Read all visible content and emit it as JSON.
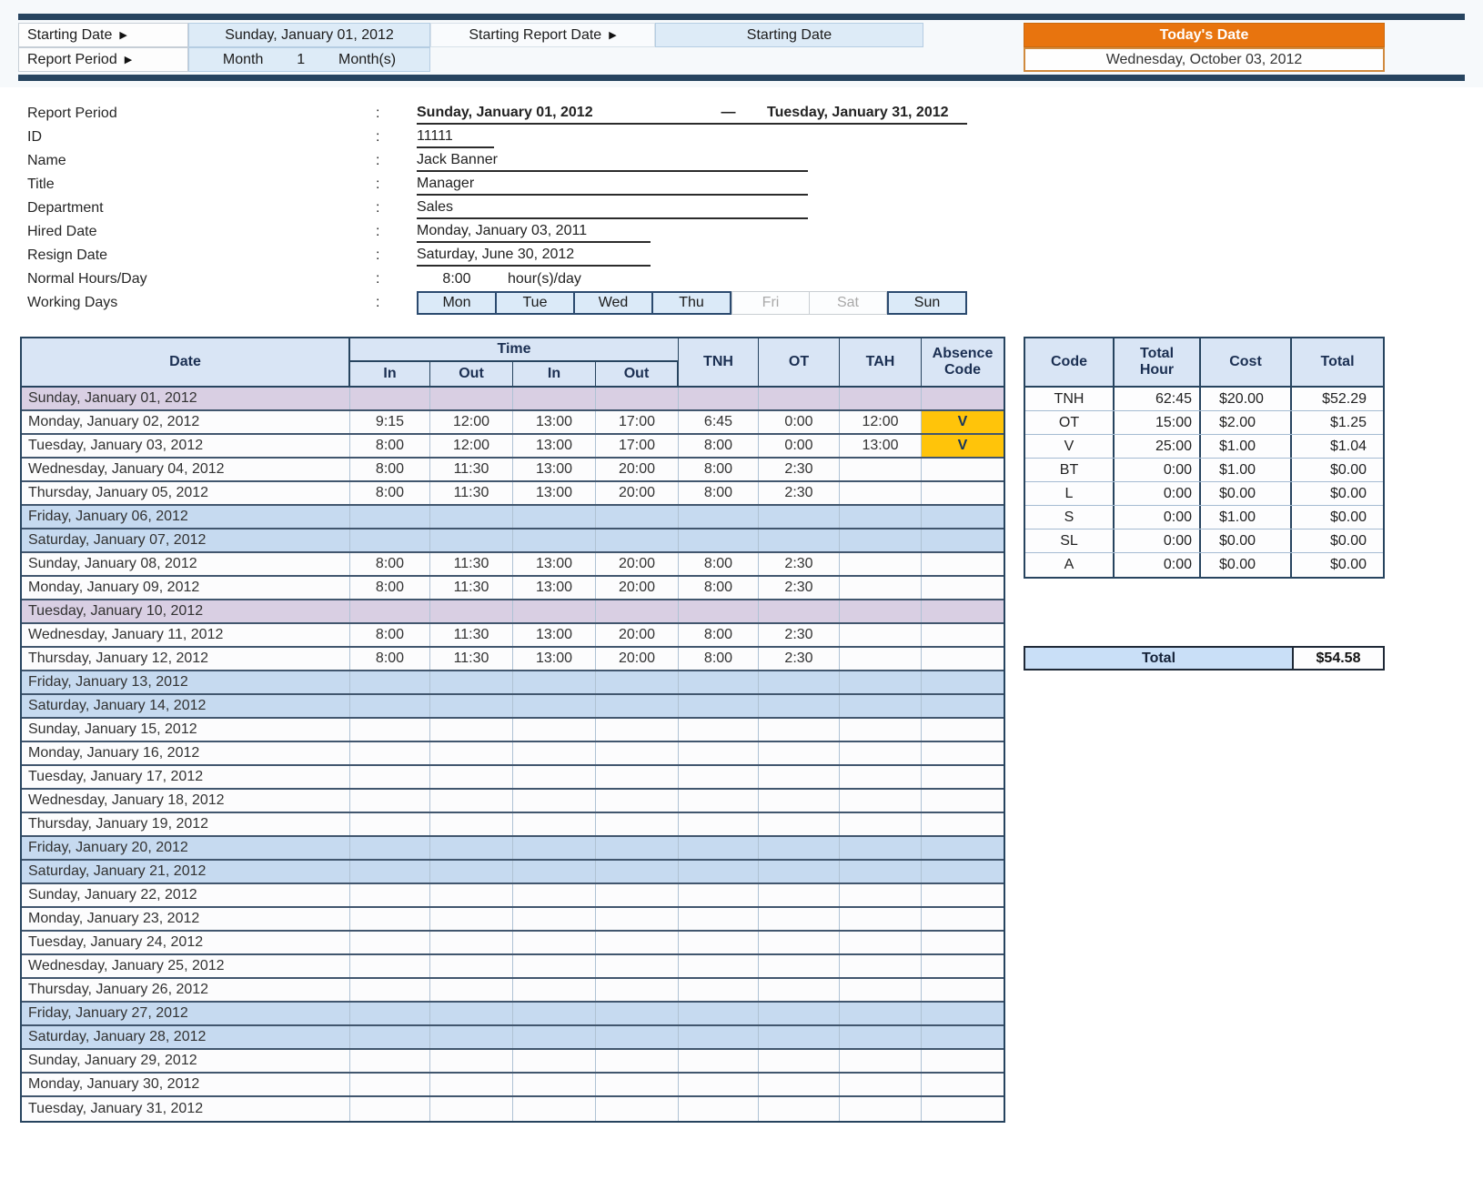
{
  "icons": {
    "triangle_right": "▶"
  },
  "colors": {
    "navy_accent": "#27445F",
    "header_blue": "#D9E5F5",
    "cell_blue": "#DDEBF7",
    "weekend_blue": "#C6DAF0",
    "holiday_lavender": "#D9CFE3",
    "absence_yellow": "#FFC40A",
    "today_orange": "#E8740E"
  },
  "top": {
    "starting_date_label": "Starting Date",
    "starting_date_value": "Sunday, January 01, 2012",
    "starting_report_date_label": "Starting Report Date",
    "starting_report_date_value": "Starting Date",
    "report_period_label": "Report Period",
    "report_period_unit": "Month",
    "report_period_count": "1",
    "report_period_suffix": "Month(s)",
    "todays_date_label": "Today's Date",
    "todays_date_value": "Wednesday, October 03, 2012"
  },
  "info": {
    "colon": ":",
    "report_period": {
      "label": "Report Period",
      "start": "Sunday, January 01, 2012",
      "dash": "—",
      "end": "Tuesday, January 31, 2012"
    },
    "id": {
      "label": "ID",
      "value": "11111"
    },
    "name": {
      "label": "Name",
      "value": "Jack Banner"
    },
    "title": {
      "label": "Title",
      "value": "Manager"
    },
    "department": {
      "label": "Department",
      "value": "Sales"
    },
    "hired_date": {
      "label": "Hired Date",
      "value": "Monday, January 03, 2011"
    },
    "resign_date": {
      "label": "Resign Date",
      "value": "Saturday, June 30, 2012"
    },
    "normal_hours": {
      "label": "Normal Hours/Day",
      "value": "8:00",
      "suffix": "hour(s)/day"
    },
    "working_days": {
      "label": "Working Days",
      "days": [
        {
          "label": "Mon",
          "active": true
        },
        {
          "label": "Tue",
          "active": true
        },
        {
          "label": "Wed",
          "active": true
        },
        {
          "label": "Thu",
          "active": true
        },
        {
          "label": "Fri",
          "active": false
        },
        {
          "label": "Sat",
          "active": false
        },
        {
          "label": "Sun",
          "active": true
        }
      ]
    }
  },
  "timesheet": {
    "headers": {
      "date": "Date",
      "time": "Time",
      "in": "In",
      "out": "Out",
      "tnh": "TNH",
      "ot": "OT",
      "tah": "TAH",
      "absence": "Absence Code"
    },
    "rows": [
      {
        "date": "Sunday, January 01, 2012",
        "type": "holiday",
        "in1": "",
        "out1": "",
        "in2": "",
        "out2": "",
        "tnh": "",
        "ot": "",
        "tah": "",
        "code": ""
      },
      {
        "date": "Monday, January 02, 2012",
        "type": "normal",
        "in1": "9:15",
        "out1": "12:00",
        "in2": "13:00",
        "out2": "17:00",
        "tnh": "6:45",
        "ot": "0:00",
        "tah": "12:00",
        "code": "V"
      },
      {
        "date": "Tuesday, January 03, 2012",
        "type": "normal",
        "in1": "8:00",
        "out1": "12:00",
        "in2": "13:00",
        "out2": "17:00",
        "tnh": "8:00",
        "ot": "0:00",
        "tah": "13:00",
        "code": "V"
      },
      {
        "date": "Wednesday, January 04, 2012",
        "type": "normal",
        "in1": "8:00",
        "out1": "11:30",
        "in2": "13:00",
        "out2": "20:00",
        "tnh": "8:00",
        "ot": "2:30",
        "tah": "",
        "code": ""
      },
      {
        "date": "Thursday, January 05, 2012",
        "type": "normal",
        "in1": "8:00",
        "out1": "11:30",
        "in2": "13:00",
        "out2": "20:00",
        "tnh": "8:00",
        "ot": "2:30",
        "tah": "",
        "code": ""
      },
      {
        "date": "Friday, January 06, 2012",
        "type": "weekend",
        "in1": "",
        "out1": "",
        "in2": "",
        "out2": "",
        "tnh": "",
        "ot": "",
        "tah": "",
        "code": ""
      },
      {
        "date": "Saturday, January 07, 2012",
        "type": "weekend",
        "in1": "",
        "out1": "",
        "in2": "",
        "out2": "",
        "tnh": "",
        "ot": "",
        "tah": "",
        "code": ""
      },
      {
        "date": "Sunday, January 08, 2012",
        "type": "normal",
        "in1": "8:00",
        "out1": "11:30",
        "in2": "13:00",
        "out2": "20:00",
        "tnh": "8:00",
        "ot": "2:30",
        "tah": "",
        "code": ""
      },
      {
        "date": "Monday, January 09, 2012",
        "type": "normal",
        "in1": "8:00",
        "out1": "11:30",
        "in2": "13:00",
        "out2": "20:00",
        "tnh": "8:00",
        "ot": "2:30",
        "tah": "",
        "code": ""
      },
      {
        "date": "Tuesday, January 10, 2012",
        "type": "holiday",
        "in1": "",
        "out1": "",
        "in2": "",
        "out2": "",
        "tnh": "",
        "ot": "",
        "tah": "",
        "code": ""
      },
      {
        "date": "Wednesday, January 11, 2012",
        "type": "normal",
        "in1": "8:00",
        "out1": "11:30",
        "in2": "13:00",
        "out2": "20:00",
        "tnh": "8:00",
        "ot": "2:30",
        "tah": "",
        "code": ""
      },
      {
        "date": "Thursday, January 12, 2012",
        "type": "normal",
        "in1": "8:00",
        "out1": "11:30",
        "in2": "13:00",
        "out2": "20:00",
        "tnh": "8:00",
        "ot": "2:30",
        "tah": "",
        "code": ""
      },
      {
        "date": "Friday, January 13, 2012",
        "type": "weekend",
        "in1": "",
        "out1": "",
        "in2": "",
        "out2": "",
        "tnh": "",
        "ot": "",
        "tah": "",
        "code": ""
      },
      {
        "date": "Saturday, January 14, 2012",
        "type": "weekend",
        "in1": "",
        "out1": "",
        "in2": "",
        "out2": "",
        "tnh": "",
        "ot": "",
        "tah": "",
        "code": ""
      },
      {
        "date": "Sunday, January 15, 2012",
        "type": "normal",
        "in1": "",
        "out1": "",
        "in2": "",
        "out2": "",
        "tnh": "",
        "ot": "",
        "tah": "",
        "code": ""
      },
      {
        "date": "Monday, January 16, 2012",
        "type": "normal",
        "in1": "",
        "out1": "",
        "in2": "",
        "out2": "",
        "tnh": "",
        "ot": "",
        "tah": "",
        "code": ""
      },
      {
        "date": "Tuesday, January 17, 2012",
        "type": "normal",
        "in1": "",
        "out1": "",
        "in2": "",
        "out2": "",
        "tnh": "",
        "ot": "",
        "tah": "",
        "code": ""
      },
      {
        "date": "Wednesday, January 18, 2012",
        "type": "normal",
        "in1": "",
        "out1": "",
        "in2": "",
        "out2": "",
        "tnh": "",
        "ot": "",
        "tah": "",
        "code": ""
      },
      {
        "date": "Thursday, January 19, 2012",
        "type": "normal",
        "in1": "",
        "out1": "",
        "in2": "",
        "out2": "",
        "tnh": "",
        "ot": "",
        "tah": "",
        "code": ""
      },
      {
        "date": "Friday, January 20, 2012",
        "type": "weekend",
        "in1": "",
        "out1": "",
        "in2": "",
        "out2": "",
        "tnh": "",
        "ot": "",
        "tah": "",
        "code": ""
      },
      {
        "date": "Saturday, January 21, 2012",
        "type": "weekend",
        "in1": "",
        "out1": "",
        "in2": "",
        "out2": "",
        "tnh": "",
        "ot": "",
        "tah": "",
        "code": ""
      },
      {
        "date": "Sunday, January 22, 2012",
        "type": "normal",
        "in1": "",
        "out1": "",
        "in2": "",
        "out2": "",
        "tnh": "",
        "ot": "",
        "tah": "",
        "code": ""
      },
      {
        "date": "Monday, January 23, 2012",
        "type": "normal",
        "in1": "",
        "out1": "",
        "in2": "",
        "out2": "",
        "tnh": "",
        "ot": "",
        "tah": "",
        "code": ""
      },
      {
        "date": "Tuesday, January 24, 2012",
        "type": "normal",
        "in1": "",
        "out1": "",
        "in2": "",
        "out2": "",
        "tnh": "",
        "ot": "",
        "tah": "",
        "code": ""
      },
      {
        "date": "Wednesday, January 25, 2012",
        "type": "normal",
        "in1": "",
        "out1": "",
        "in2": "",
        "out2": "",
        "tnh": "",
        "ot": "",
        "tah": "",
        "code": ""
      },
      {
        "date": "Thursday, January 26, 2012",
        "type": "normal",
        "in1": "",
        "out1": "",
        "in2": "",
        "out2": "",
        "tnh": "",
        "ot": "",
        "tah": "",
        "code": ""
      },
      {
        "date": "Friday, January 27, 2012",
        "type": "weekend",
        "in1": "",
        "out1": "",
        "in2": "",
        "out2": "",
        "tnh": "",
        "ot": "",
        "tah": "",
        "code": ""
      },
      {
        "date": "Saturday, January 28, 2012",
        "type": "weekend",
        "in1": "",
        "out1": "",
        "in2": "",
        "out2": "",
        "tnh": "",
        "ot": "",
        "tah": "",
        "code": ""
      },
      {
        "date": "Sunday, January 29, 2012",
        "type": "normal",
        "in1": "",
        "out1": "",
        "in2": "",
        "out2": "",
        "tnh": "",
        "ot": "",
        "tah": "",
        "code": ""
      },
      {
        "date": "Monday, January 30, 2012",
        "type": "normal",
        "in1": "",
        "out1": "",
        "in2": "",
        "out2": "",
        "tnh": "",
        "ot": "",
        "tah": "",
        "code": ""
      },
      {
        "date": "Tuesday, January 31, 2012",
        "type": "normal",
        "in1": "",
        "out1": "",
        "in2": "",
        "out2": "",
        "tnh": "",
        "ot": "",
        "tah": "",
        "code": ""
      }
    ]
  },
  "summary": {
    "headers": {
      "code": "Code",
      "total_hour": "Total Hour",
      "cost": "Cost",
      "total": "Total"
    },
    "rows": [
      {
        "code": "TNH",
        "hour": "62:45",
        "cost": "$20.00",
        "total": "$52.29"
      },
      {
        "code": "OT",
        "hour": "15:00",
        "cost": "$2.00",
        "total": "$1.25"
      },
      {
        "code": "V",
        "hour": "25:00",
        "cost": "$1.00",
        "total": "$1.04"
      },
      {
        "code": "BT",
        "hour": "0:00",
        "cost": "$1.00",
        "total": "$0.00"
      },
      {
        "code": "L",
        "hour": "0:00",
        "cost": "$0.00",
        "total": "$0.00"
      },
      {
        "code": "S",
        "hour": "0:00",
        "cost": "$1.00",
        "total": "$0.00"
      },
      {
        "code": "SL",
        "hour": "0:00",
        "cost": "$0.00",
        "total": "$0.00"
      },
      {
        "code": "A",
        "hour": "0:00",
        "cost": "$0.00",
        "total": "$0.00"
      }
    ],
    "grand_total_label": "Total",
    "grand_total_value": "$54.58"
  }
}
